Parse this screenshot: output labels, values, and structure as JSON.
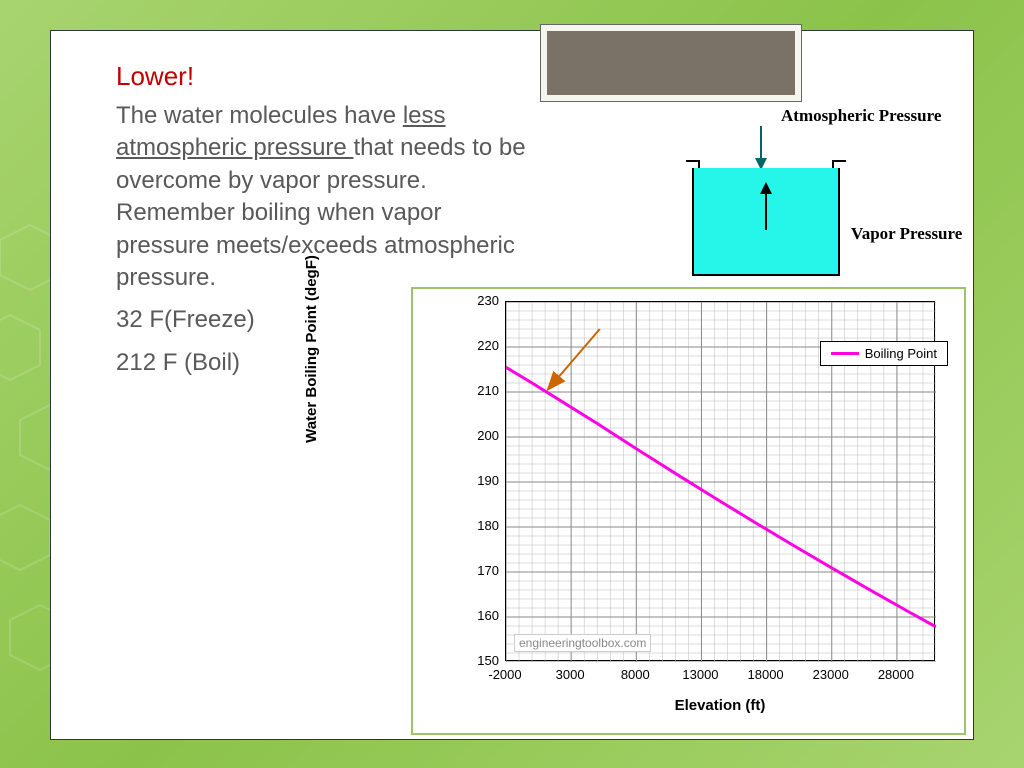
{
  "header": "Lower!",
  "paragraph": {
    "pre": "The water molecules have ",
    "underlined": "less atmospheric pressure ",
    "post": "that needs to be overcome by vapor pressure. Remember boiling when vapor pressure meets/exceeds atmospheric pressure."
  },
  "freeze_line": "32 F(Freeze)",
  "boil_line": "212 F (Boil)",
  "diagram": {
    "atm_label": "Atmospheric Pressure",
    "vapor_label": "Vapor Pressure",
    "beaker_fill": "#25f6e9",
    "arrow_down_color": "#006666",
    "arrow_up_color": "#000000"
  },
  "chart": {
    "type": "line",
    "title": "",
    "x_label": "Elevation (ft)",
    "y_label": "Water Boiling Point (degF)",
    "x_min": -2000,
    "x_max": 31000,
    "y_min": 150,
    "y_max": 230,
    "x_ticks": [
      -2000,
      3000,
      8000,
      13000,
      18000,
      23000,
      28000
    ],
    "y_ticks": [
      150,
      160,
      170,
      180,
      190,
      200,
      210,
      220,
      230
    ],
    "minor_x_step": 1000,
    "minor_y_step": 2,
    "line_color": "#ff00e5",
    "line_width": 3,
    "legend_label": "Boiling Point",
    "watermark": "engineeringtoolbox.com",
    "grid_color": "#bbbbbb",
    "background_color": "#ffffff",
    "annotation_arrow_color": "#cc6600",
    "series": {
      "x": [
        -2000,
        0,
        2000,
        5000,
        8000,
        11000,
        14000,
        17000,
        20000,
        23000,
        26000,
        29000,
        31000
      ],
      "y": [
        215.5,
        212,
        208.4,
        203,
        197.4,
        191.9,
        186.5,
        181.2,
        176,
        170.9,
        165.9,
        161,
        157.8
      ]
    },
    "annotation_arrow": {
      "from_x": 5200,
      "from_y": 224,
      "to_x": 1200,
      "to_y": 210.5
    },
    "label_fontsize": 15,
    "tick_fontsize": 13
  },
  "colors": {
    "bg_gradient": [
      "#a8d46f",
      "#8bc34a"
    ],
    "card_bg": "#ffffff",
    "header_color": "#c00000",
    "body_text": "#595959",
    "title_box_bg": "#7a7266",
    "title_box_border": "#f5f5f0",
    "chart_border": "#9cc46a"
  }
}
